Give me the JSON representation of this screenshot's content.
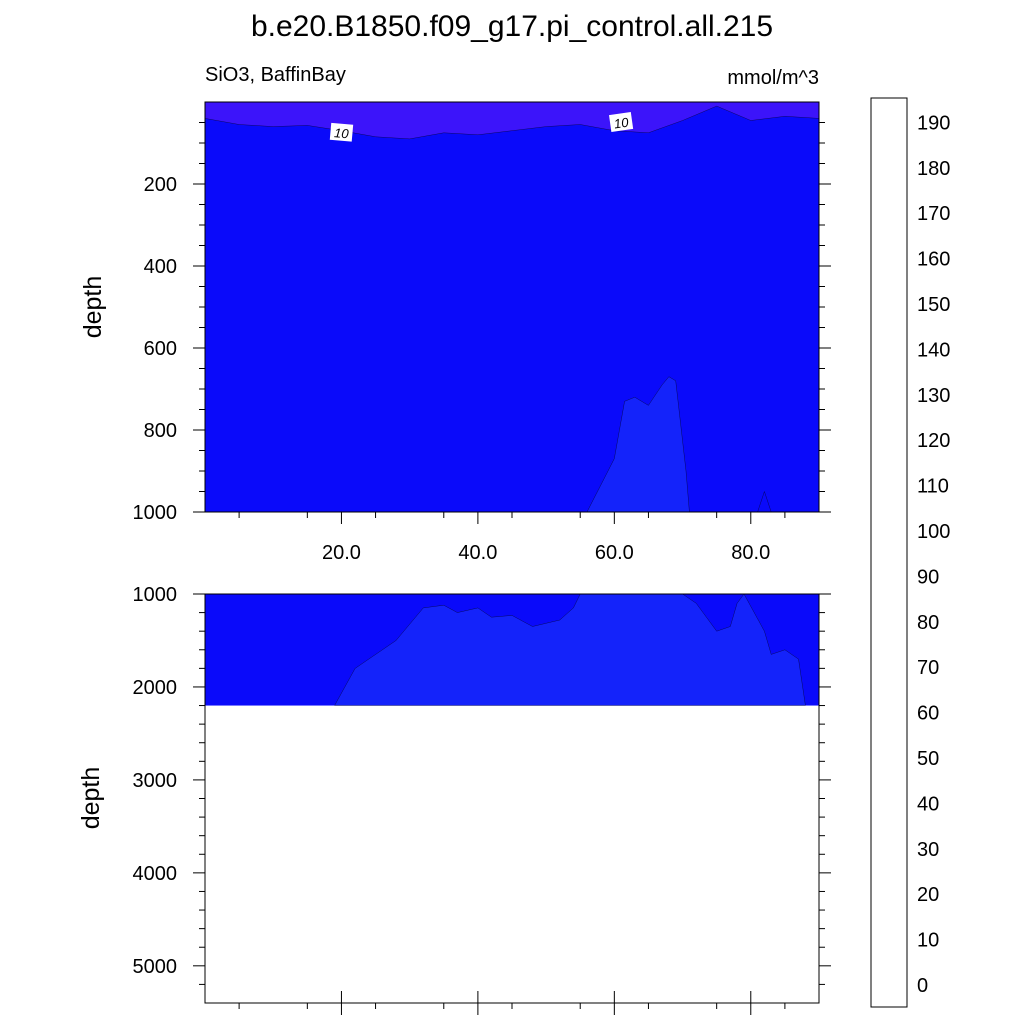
{
  "chart_data": [
    {
      "type": "contour",
      "panel": "top",
      "title": "b.e20.B1850.f09_g17.pi_control.all.215",
      "subtitle_left": "SiO3, BaffinBay",
      "subtitle_right": "mmol/m^3",
      "ylabel": "depth",
      "xlim": [
        0,
        90
      ],
      "ylim": [
        0,
        1000
      ],
      "y_reversed": true,
      "xticks": [
        "20.0",
        "40.0",
        "60.0",
        "80.0"
      ],
      "yticks": [
        "200",
        "400",
        "600",
        "800",
        "1000"
      ],
      "contour_labels": [
        "10",
        "10"
      ],
      "regions": [
        {
          "level": "0-10",
          "color": "#3c14fa",
          "desc": "thin surface layer",
          "boundary_depth_x": [
            [
              0,
              40
            ],
            [
              5,
              55
            ],
            [
              10,
              60
            ],
            [
              15,
              57
            ],
            [
              20,
              70
            ],
            [
              25,
              85
            ],
            [
              30,
              90
            ],
            [
              35,
              75
            ],
            [
              40,
              80
            ],
            [
              45,
              70
            ],
            [
              50,
              60
            ],
            [
              55,
              55
            ],
            [
              60,
              70
            ],
            [
              65,
              75
            ],
            [
              70,
              45
            ],
            [
              75,
              10
            ],
            [
              80,
              45
            ],
            [
              85,
              35
            ],
            [
              90,
              40
            ]
          ]
        },
        {
          "level": "10-20",
          "color": "#0a0afa",
          "desc": "background"
        },
        {
          "level": "20-30",
          "color": "#1423fa",
          "desc": "deep intrusion near x=56-71",
          "outline": [
            [
              56,
              1000
            ],
            [
              60,
              870
            ],
            [
              61.5,
              730
            ],
            [
              63,
              720
            ],
            [
              65,
              740
            ],
            [
              67,
              690
            ],
            [
              68,
              670
            ],
            [
              69,
              680
            ],
            [
              70.5,
              900
            ],
            [
              71,
              1000
            ]
          ]
        }
      ]
    },
    {
      "type": "contour",
      "panel": "bottom",
      "ylabel": "depth",
      "xlim": [
        0,
        90
      ],
      "ylim": [
        1000,
        5400
      ],
      "y_reversed": true,
      "data_max_depth": 2200,
      "yticks": [
        "1000",
        "2000",
        "3000",
        "4000",
        "5000"
      ],
      "regions": [
        {
          "level": "10-20",
          "color": "#0a0afa",
          "desc": "background"
        },
        {
          "level": "20-30",
          "color": "#1423fa",
          "outline": [
            [
              19,
              2200
            ],
            [
              22,
              1800
            ],
            [
              28,
              1500
            ],
            [
              32,
              1150
            ],
            [
              35,
              1120
            ],
            [
              37,
              1200
            ],
            [
              40,
              1150
            ],
            [
              42,
              1250
            ],
            [
              45,
              1230
            ],
            [
              48,
              1350
            ],
            [
              52,
              1280
            ],
            [
              54,
              1150
            ],
            [
              55,
              1000
            ],
            [
              70,
              1000
            ],
            [
              72,
              1100
            ],
            [
              75,
              1400
            ],
            [
              77,
              1350
            ],
            [
              78,
              1100
            ],
            [
              79,
              1000
            ],
            [
              82,
              1400
            ],
            [
              83,
              1650
            ],
            [
              85,
              1600
            ],
            [
              87,
              1700
            ],
            [
              88,
              2200
            ]
          ]
        }
      ]
    }
  ],
  "colorbar": {
    "labels": [
      "0",
      "10",
      "20",
      "30",
      "40",
      "50",
      "60",
      "70",
      "80",
      "90",
      "100",
      "110",
      "120",
      "130",
      "140",
      "150",
      "160",
      "170",
      "180",
      "190"
    ],
    "colors": [
      "#7e1ee6",
      "#5a1aef",
      "#3c14fa",
      "#0a0afa",
      "#1423fa",
      "#2a3ef0",
      "#3553e5",
      "#3f6ee6",
      "#2d82f0",
      "#1e96fa",
      "#0aa5ff",
      "#00b4fa",
      "#2dc8f5",
      "#5ac3f0",
      "#78c8f0",
      "#91d2f0",
      "#a5d7f0",
      "#b4dcf0",
      "#c3e6f5",
      "#fffaaa",
      "#fff08c",
      "#ffe650",
      "#ffd23c",
      "#ffbe14",
      "#ffaa00",
      "#ff9600",
      "#ff7800",
      "#ff5a00",
      "#ff3c00",
      "#ff1e00",
      "#ff0a0a",
      "#e60000",
      "#d70a0a",
      "#cd1414",
      "#dc3c3c",
      "#f07878",
      "#fab4b4"
    ]
  }
}
